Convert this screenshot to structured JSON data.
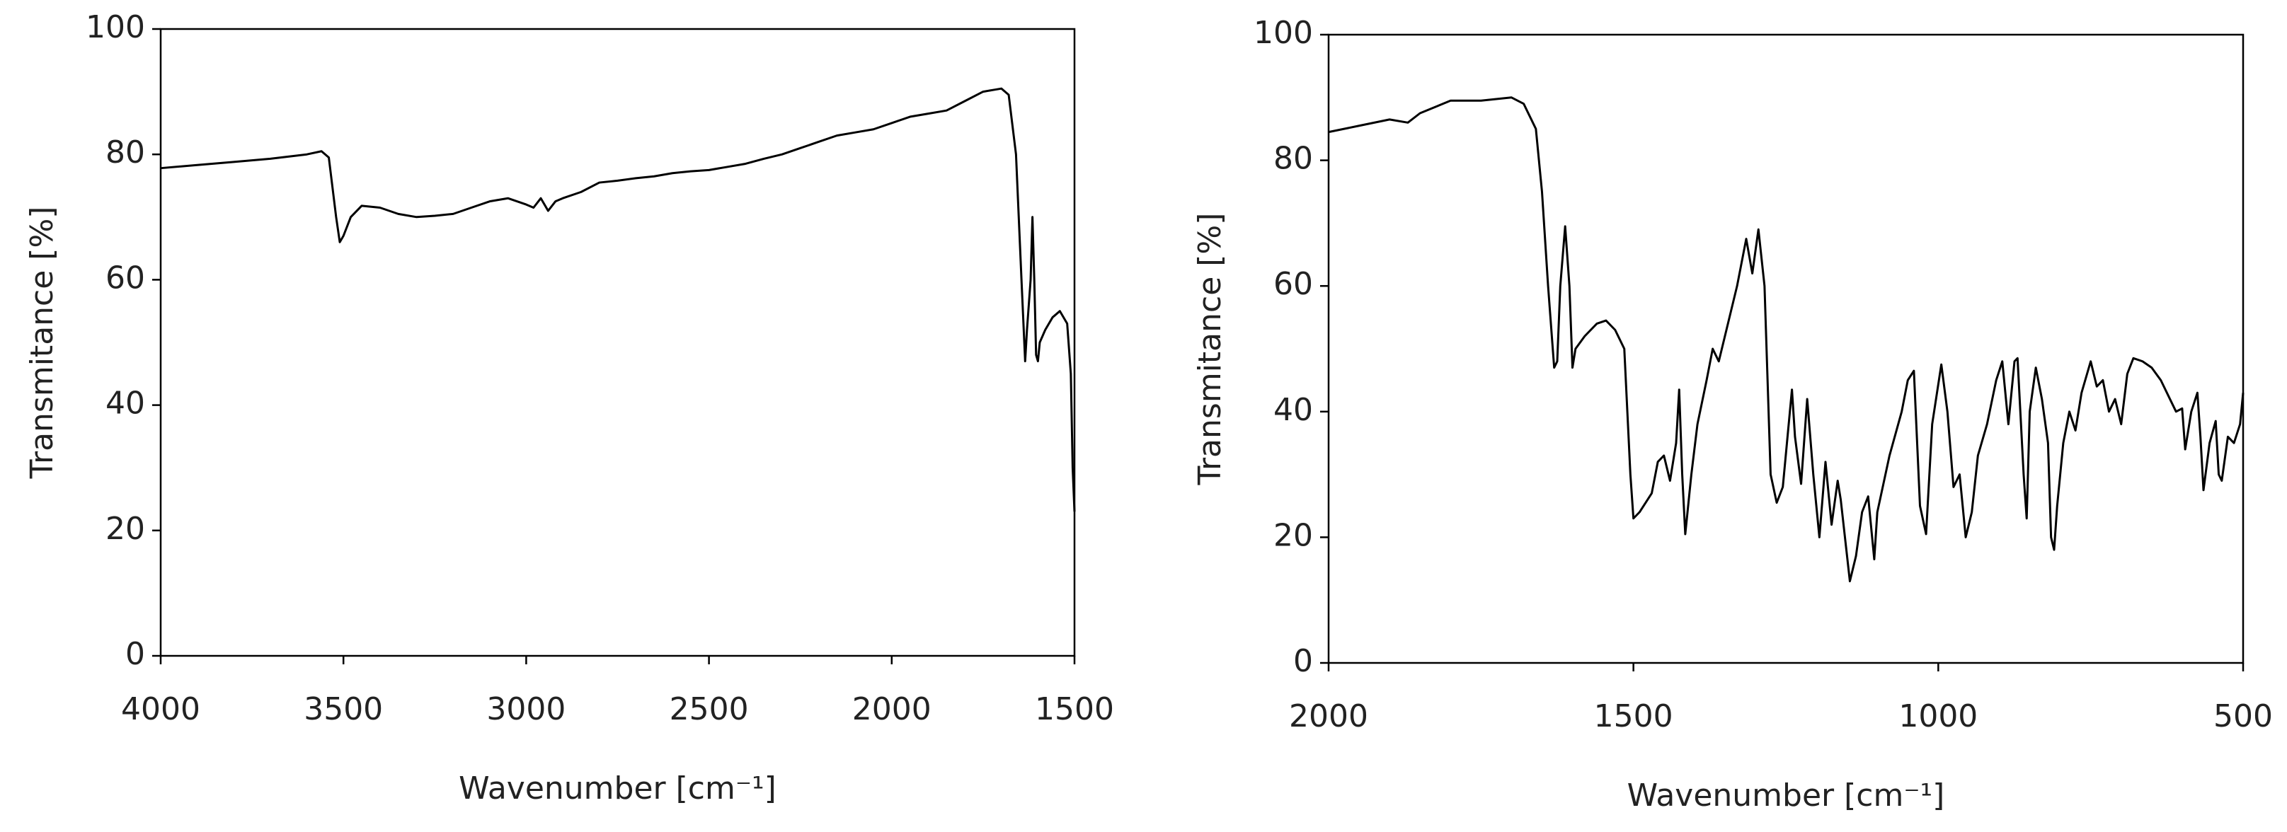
{
  "chart_data": [
    {
      "type": "line",
      "x_label": "Wavenumber [cm⁻¹]",
      "y_label": "Transmitance [%]",
      "xlim": [
        4000,
        1500
      ],
      "xticks": [
        4000,
        3500,
        3000,
        2500,
        2000,
        1500
      ],
      "ylim": [
        0,
        100
      ],
      "yticks": [
        0,
        20,
        40,
        60,
        80,
        100
      ],
      "grid": false,
      "series": [
        {
          "color": "#000000",
          "x": [
            4000,
            3900,
            3800,
            3700,
            3600,
            3560,
            3540,
            3520,
            3510,
            3500,
            3480,
            3450,
            3400,
            3350,
            3300,
            3250,
            3200,
            3150,
            3100,
            3050,
            3000,
            2980,
            2960,
            2940,
            2920,
            2900,
            2850,
            2800,
            2750,
            2700,
            2650,
            2600,
            2550,
            2500,
            2450,
            2400,
            2350,
            2300,
            2250,
            2200,
            2150,
            2100,
            2050,
            2000,
            1950,
            1900,
            1850,
            1800,
            1750,
            1720,
            1700,
            1680,
            1660,
            1645,
            1635,
            1630,
            1620,
            1615,
            1610,
            1605,
            1600,
            1595,
            1580,
            1560,
            1540,
            1520,
            1510,
            1505,
            1500
          ],
          "values": [
            77.8,
            78.3,
            78.8,
            79.3,
            80,
            80.5,
            79.5,
            70,
            66,
            67,
            70,
            71.8,
            71.5,
            70.5,
            70,
            70.2,
            70.5,
            71.5,
            72.5,
            73,
            72,
            71.5,
            73,
            71,
            72.5,
            73,
            74,
            75.5,
            75.8,
            76.2,
            76.5,
            77,
            77.3,
            77.5,
            78,
            78.5,
            79.3,
            80,
            81,
            82,
            83,
            83.5,
            84,
            85,
            86,
            86.5,
            87,
            88.5,
            90,
            90.3,
            90.5,
            89.5,
            80,
            60,
            47,
            52,
            60,
            70,
            60,
            48,
            47,
            50,
            52,
            54,
            55,
            53,
            45,
            30,
            23
          ]
        }
      ]
    },
    {
      "type": "line",
      "x_label": "Wavenumber [cm⁻¹]",
      "y_label": "Transmitance [%]",
      "xlim": [
        2000,
        500
      ],
      "xticks": [
        2000,
        1500,
        1000,
        500
      ],
      "ylim": [
        0,
        100
      ],
      "yticks": [
        0,
        20,
        40,
        60,
        80,
        100
      ],
      "grid": false,
      "series": [
        {
          "color": "#000000",
          "x": [
            2000,
            1950,
            1900,
            1870,
            1850,
            1800,
            1750,
            1700,
            1680,
            1660,
            1650,
            1640,
            1630,
            1625,
            1620,
            1612,
            1605,
            1600,
            1595,
            1580,
            1560,
            1545,
            1530,
            1515,
            1505,
            1500,
            1490,
            1470,
            1460,
            1450,
            1440,
            1430,
            1425,
            1420,
            1415,
            1405,
            1395,
            1380,
            1370,
            1360,
            1350,
            1330,
            1315,
            1305,
            1295,
            1285,
            1275,
            1265,
            1255,
            1240,
            1235,
            1225,
            1215,
            1205,
            1195,
            1185,
            1175,
            1165,
            1160,
            1145,
            1135,
            1125,
            1115,
            1105,
            1100,
            1080,
            1060,
            1050,
            1040,
            1030,
            1020,
            1010,
            995,
            985,
            975,
            965,
            955,
            945,
            935,
            920,
            905,
            895,
            885,
            875,
            870,
            860,
            855,
            850,
            840,
            830,
            820,
            815,
            810,
            805,
            795,
            785,
            775,
            765,
            750,
            740,
            730,
            720,
            710,
            700,
            690,
            680,
            665,
            650,
            635,
            620,
            610,
            600,
            595,
            585,
            575,
            570,
            565,
            555,
            545,
            540,
            535,
            525,
            515,
            505,
            500
          ],
          "values": [
            84.5,
            85.5,
            86.5,
            86,
            87.5,
            89.5,
            89.5,
            90,
            89,
            85,
            75,
            60,
            47,
            48,
            60,
            69.5,
            60,
            47,
            50,
            52,
            54,
            54.5,
            53,
            50,
            30,
            23,
            24,
            27,
            32,
            33,
            29,
            35,
            43.5,
            30,
            20.5,
            30,
            38,
            45,
            50,
            48,
            52,
            60,
            67.5,
            62,
            69,
            60,
            30,
            25.5,
            28,
            43.5,
            36,
            28.5,
            42,
            30,
            20,
            32,
            22,
            29,
            26,
            13,
            17,
            24,
            26.5,
            16.5,
            24,
            33,
            40,
            45,
            46.5,
            25,
            20.5,
            38,
            47.5,
            40,
            28,
            30,
            20,
            24,
            33,
            38,
            45,
            48,
            38,
            48,
            48.5,
            30,
            23,
            40,
            47,
            42,
            35,
            20,
            18,
            25,
            35,
            40,
            37,
            43,
            48,
            44,
            45,
            40,
            42,
            38,
            46,
            48.5,
            48,
            47,
            45,
            42,
            40,
            40.5,
            34,
            40,
            43,
            36,
            27.5,
            35,
            38.5,
            30,
            29,
            36,
            35,
            38,
            43
          ]
        }
      ]
    }
  ]
}
